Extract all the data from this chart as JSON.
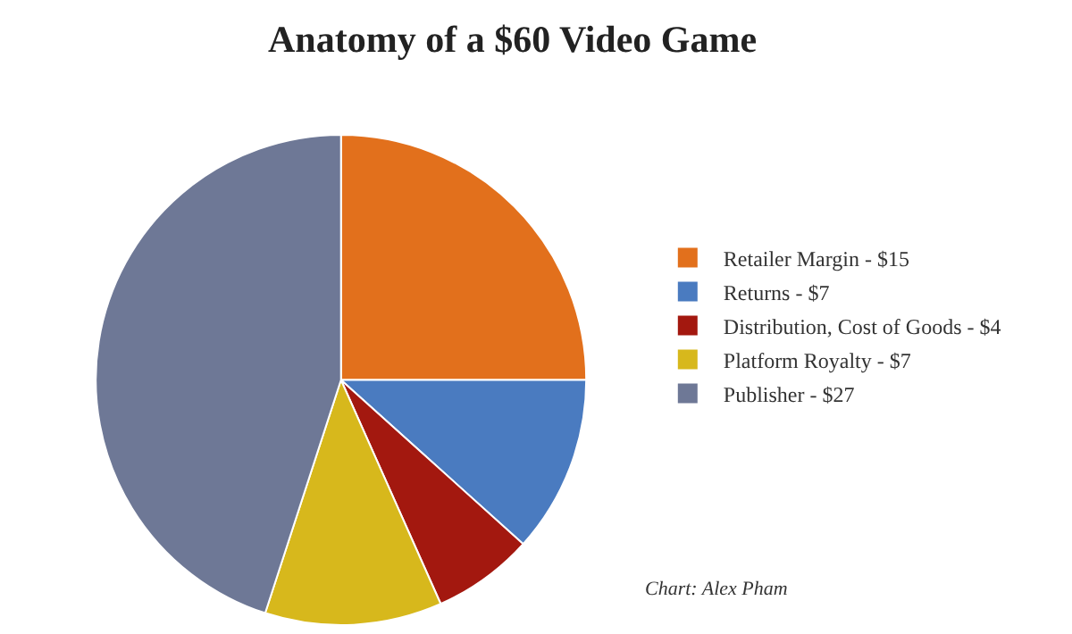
{
  "chart_data": {
    "type": "pie",
    "title": "Anatomy of a $60 Video Game",
    "categories": [
      "Retailer Margin",
      "Returns",
      "Distribution, Cost of Goods",
      "Platform Royalty",
      "Publisher"
    ],
    "values": [
      15,
      7,
      4,
      7,
      27
    ],
    "value_labels": [
      "$15",
      "$7",
      "$4",
      "$7",
      "$27"
    ],
    "colors": [
      "#e2701c",
      "#4a7bc0",
      "#a3180f",
      "#d7b81c",
      "#6e7896"
    ],
    "legend": "right",
    "annotations": [
      "Chart: Alex Pham"
    ]
  }
}
